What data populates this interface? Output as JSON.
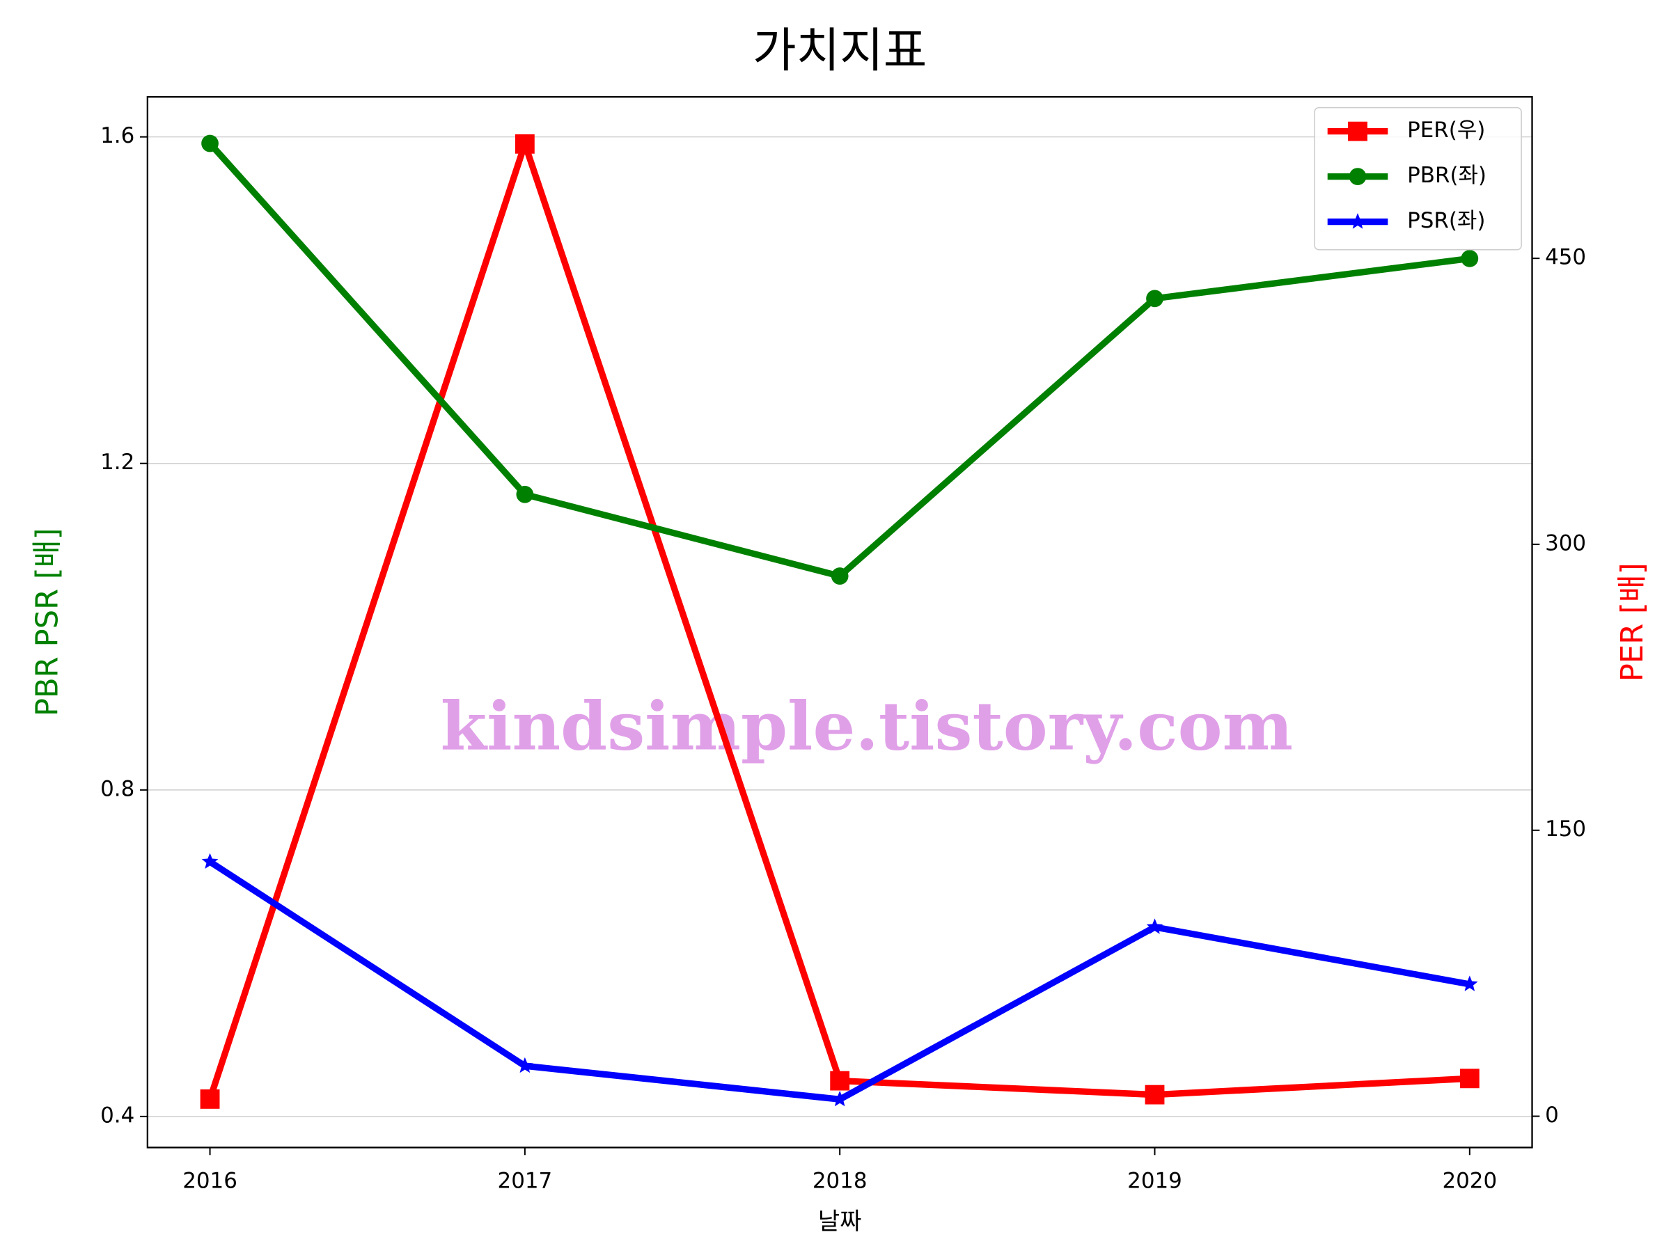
{
  "chart_data": {
    "type": "line",
    "title": "가치지표",
    "x_label": "날짜",
    "y_label": "PBR PSR [배]",
    "y2_label": "PER [배]",
    "categories": [
      "2016",
      "2017",
      "2018",
      "2019",
      "2020"
    ],
    "series": [
      {
        "name": "PER(우)",
        "color": "#ff0000",
        "marker": "square",
        "axis": "y2",
        "values": [
          9,
          510,
          18.6,
          11.3,
          19.8
        ]
      },
      {
        "name": "PBR(좌)",
        "color": "#008000",
        "marker": "circle",
        "values": [
          1.592,
          1.162,
          1.062,
          1.402,
          1.451
        ]
      },
      {
        "name": "PSR(좌)",
        "color": "#0000ff",
        "marker": "star",
        "values": [
          0.712,
          0.462,
          0.421,
          0.632,
          0.562
        ]
      }
    ],
    "ylim": [
      0.362,
      1.649
    ],
    "yticks": [
      0.4,
      0.8,
      1.2,
      1.6
    ],
    "y2lim": [
      -16.4,
      534.7
    ],
    "y2ticks": [
      0,
      150,
      300,
      450
    ],
    "grid": true,
    "legend": "upper right",
    "watermark": "kindsimple.tistory.com"
  }
}
